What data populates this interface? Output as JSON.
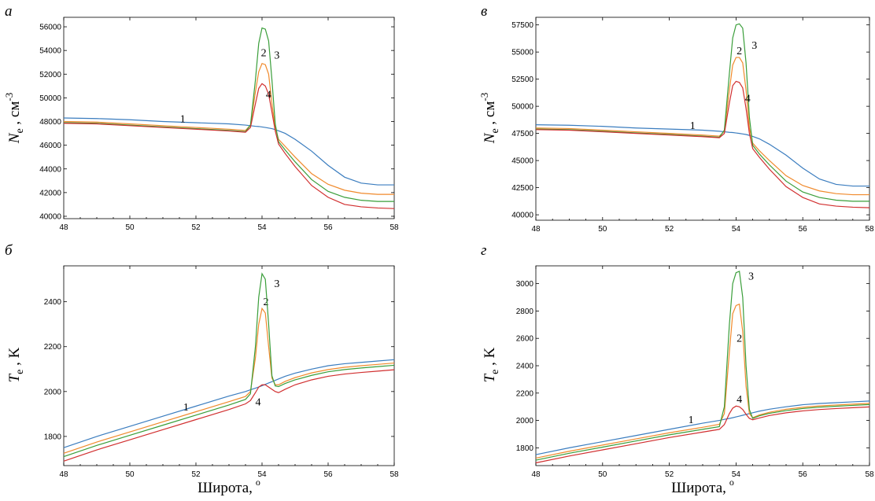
{
  "x_axis_label": "Широта,",
  "x_axis_unit": "o",
  "colors": {
    "s1": "#3b7dbf",
    "s2": "#f08a2c",
    "s3": "#3a9e3a",
    "s4": "#d12f2f"
  },
  "chart_data": [
    {
      "type": "line",
      "panel": "а",
      "ylabel_main": "N",
      "ylabel_sub": "e",
      "ylabel_rest": " , см",
      "ylabel_sup": "-3",
      "xlim": [
        48,
        58
      ],
      "ylim": [
        39800,
        56800
      ],
      "x_ticks": [
        "48",
        "50",
        "52",
        "54",
        "56",
        "58"
      ],
      "y_ticks": [
        "40000",
        "42000",
        "44000",
        "46000",
        "48000",
        "50000",
        "52000",
        "54000",
        "56000"
      ],
      "x": [
        48,
        49,
        50,
        51,
        52,
        53,
        53.5,
        53.65,
        53.8,
        53.9,
        54,
        54.1,
        54.2,
        54.3,
        54.4,
        54.5,
        54.7,
        55,
        55.5,
        56,
        56.5,
        57,
        57.5,
        58
      ],
      "series": [
        {
          "label": "1",
          "color": "s1",
          "values": [
            48300,
            48250,
            48150,
            48000,
            47900,
            47800,
            47700,
            47650,
            47600,
            47580,
            47540,
            47500,
            47450,
            47400,
            47320,
            47220,
            47000,
            46500,
            45500,
            44300,
            43300,
            42800,
            42650,
            42650
          ]
        },
        {
          "label": "2",
          "color": "s2",
          "values": [
            48000,
            47950,
            47800,
            47650,
            47500,
            47350,
            47250,
            47700,
            50500,
            52200,
            52900,
            52800,
            52000,
            49500,
            47500,
            46500,
            45900,
            45000,
            43600,
            42700,
            42200,
            41950,
            41850,
            41850
          ]
        },
        {
          "label": "3",
          "color": "s3",
          "values": [
            47900,
            47850,
            47700,
            47550,
            47400,
            47250,
            47150,
            47700,
            51500,
            54600,
            55900,
            55800,
            54800,
            51500,
            47800,
            46300,
            45600,
            44600,
            43100,
            42100,
            41600,
            41350,
            41250,
            41250
          ]
        },
        {
          "label": "4",
          "color": "s4",
          "values": [
            47850,
            47800,
            47650,
            47500,
            47350,
            47200,
            47100,
            47500,
            49500,
            50800,
            51200,
            51000,
            50300,
            48800,
            47200,
            46100,
            45300,
            44200,
            42600,
            41600,
            41000,
            40800,
            40700,
            40650
          ]
        }
      ]
    },
    {
      "type": "line",
      "panel": "в",
      "ylabel_main": "N",
      "ylabel_sub": "e",
      "ylabel_rest": " , см",
      "ylabel_sup": "-3",
      "xlim": [
        48,
        58
      ],
      "ylim": [
        39500,
        58200
      ],
      "x_ticks": [
        "48",
        "50",
        "52",
        "54",
        "56",
        "58"
      ],
      "y_ticks": [
        "40000",
        "42500",
        "45000",
        "47500",
        "50000",
        "52500",
        "55000",
        "57500"
      ],
      "x": [
        48,
        49,
        50,
        51,
        52,
        53,
        53.5,
        53.65,
        53.8,
        53.9,
        54,
        54.1,
        54.2,
        54.3,
        54.4,
        54.5,
        54.7,
        55,
        55.5,
        56,
        56.5,
        57,
        57.5,
        58
      ],
      "series": [
        {
          "label": "1",
          "color": "s1",
          "values": [
            48300,
            48250,
            48150,
            48000,
            47900,
            47800,
            47700,
            47650,
            47600,
            47580,
            47540,
            47500,
            47450,
            47400,
            47320,
            47220,
            47000,
            46500,
            45500,
            44300,
            43300,
            42800,
            42650,
            42650
          ]
        },
        {
          "label": "2",
          "color": "s2",
          "values": [
            48000,
            47950,
            47800,
            47650,
            47500,
            47350,
            47250,
            47700,
            51500,
            53800,
            54500,
            54500,
            54000,
            51500,
            48000,
            46600,
            45900,
            45000,
            43600,
            42700,
            42200,
            41950,
            41850,
            41850
          ]
        },
        {
          "label": "3",
          "color": "s3",
          "values": [
            47900,
            47850,
            47700,
            47550,
            47400,
            47250,
            47150,
            47800,
            53000,
            56300,
            57500,
            57600,
            57200,
            54000,
            49000,
            46400,
            45600,
            44600,
            43100,
            42100,
            41600,
            41350,
            41250,
            41250
          ]
        },
        {
          "label": "4",
          "color": "s4",
          "values": [
            47850,
            47800,
            47650,
            47500,
            47350,
            47200,
            47100,
            47500,
            50300,
            51900,
            52300,
            52200,
            51700,
            49800,
            47500,
            46100,
            45300,
            44200,
            42600,
            41600,
            41000,
            40800,
            40700,
            40650
          ]
        }
      ]
    },
    {
      "type": "line",
      "panel": "б",
      "ylabel_main": "T",
      "ylabel_sub": "e",
      "ylabel_rest": " , K",
      "ylabel_sup": "",
      "xlim": [
        48,
        58
      ],
      "ylim": [
        1670,
        2560
      ],
      "x_ticks": [
        "48",
        "50",
        "52",
        "54",
        "56",
        "58"
      ],
      "y_ticks": [
        "1800",
        "2000",
        "2200",
        "2400"
      ],
      "x": [
        48,
        49,
        50,
        51,
        52,
        53,
        53.5,
        53.65,
        53.8,
        53.9,
        54,
        54.1,
        54.2,
        54.3,
        54.4,
        54.5,
        54.7,
        55,
        55.5,
        56,
        56.5,
        57,
        57.5,
        58
      ],
      "series": [
        {
          "label": "1",
          "color": "s1",
          "values": [
            1750,
            1800,
            1845,
            1890,
            1935,
            1980,
            2000,
            2008,
            2015,
            2020,
            2026,
            2032,
            2038,
            2044,
            2050,
            2056,
            2068,
            2082,
            2100,
            2115,
            2124,
            2130,
            2136,
            2142
          ]
        },
        {
          "label": "2",
          "color": "s2",
          "values": [
            1725,
            1775,
            1820,
            1865,
            1910,
            1955,
            1978,
            2000,
            2150,
            2300,
            2370,
            2350,
            2200,
            2060,
            2030,
            2030,
            2045,
            2062,
            2083,
            2098,
            2108,
            2115,
            2121,
            2127
          ]
        },
        {
          "label": "3",
          "color": "s3",
          "values": [
            1710,
            1760,
            1805,
            1850,
            1895,
            1940,
            1965,
            1990,
            2200,
            2420,
            2525,
            2500,
            2300,
            2070,
            2025,
            2022,
            2036,
            2052,
            2072,
            2088,
            2098,
            2105,
            2111,
            2117
          ]
        },
        {
          "label": "4",
          "color": "s4",
          "values": [
            1690,
            1740,
            1785,
            1830,
            1875,
            1920,
            1945,
            1960,
            1995,
            2020,
            2030,
            2030,
            2020,
            2010,
            2000,
            1995,
            2010,
            2030,
            2052,
            2068,
            2078,
            2085,
            2091,
            2097
          ]
        }
      ]
    },
    {
      "type": "line",
      "panel": "г",
      "ylabel_main": "T",
      "ylabel_sub": "e",
      "ylabel_rest": " , K",
      "ylabel_sup": "",
      "xlim": [
        48,
        58
      ],
      "ylim": [
        1670,
        3130
      ],
      "x_ticks": [
        "48",
        "50",
        "52",
        "54",
        "56",
        "58"
      ],
      "y_ticks": [
        "1800",
        "2000",
        "2200",
        "2400",
        "2600",
        "2800",
        "3000"
      ],
      "x": [
        48,
        49,
        50,
        51,
        52,
        53,
        53.5,
        53.65,
        53.8,
        53.9,
        54,
        54.1,
        54.2,
        54.3,
        54.4,
        54.5,
        54.7,
        55,
        55.5,
        56,
        56.5,
        57,
        57.5,
        58
      ],
      "series": [
        {
          "label": "1",
          "color": "s1",
          "values": [
            1750,
            1800,
            1845,
            1890,
            1935,
            1980,
            2000,
            2008,
            2015,
            2020,
            2026,
            2032,
            2038,
            2044,
            2050,
            2056,
            2068,
            2082,
            2100,
            2115,
            2124,
            2130,
            2136,
            2142
          ]
        },
        {
          "label": "2",
          "color": "s2",
          "values": [
            1725,
            1775,
            1820,
            1865,
            1910,
            1950,
            1972,
            2050,
            2500,
            2780,
            2840,
            2850,
            2650,
            2250,
            2050,
            2020,
            2040,
            2060,
            2082,
            2096,
            2106,
            2113,
            2119,
            2125
          ]
        },
        {
          "label": "3",
          "color": "s3",
          "values": [
            1710,
            1760,
            1805,
            1850,
            1895,
            1935,
            1955,
            2100,
            2700,
            3000,
            3080,
            3090,
            2900,
            2400,
            2080,
            2015,
            2034,
            2052,
            2072,
            2087,
            2097,
            2104,
            2110,
            2116
          ]
        },
        {
          "label": "4",
          "color": "s4",
          "values": [
            1690,
            1740,
            1785,
            1830,
            1875,
            1915,
            1935,
            1970,
            2050,
            2090,
            2105,
            2100,
            2080,
            2045,
            2015,
            2005,
            2018,
            2036,
            2056,
            2070,
            2080,
            2087,
            2093,
            2099
          ]
        }
      ]
    }
  ]
}
